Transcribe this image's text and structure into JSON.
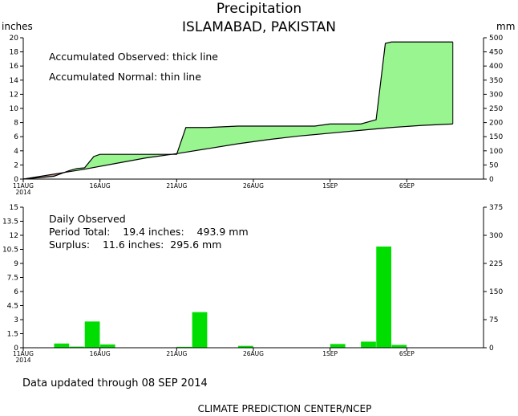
{
  "title": "Precipitation",
  "location": "ISLAMABAD, PAKISTAN",
  "chart_data": [
    {
      "type": "area",
      "name": "accumulated",
      "unit_left": "inches",
      "unit_right": "mm",
      "note_observed": "Accumulated Observed: thick line",
      "note_normal": "Accumulated Normal: thin line",
      "ylim": [
        0,
        20
      ],
      "ylim_right": [
        0,
        500
      ],
      "yticks": [
        "0",
        "2",
        "4",
        "6",
        "8",
        "10",
        "12",
        "14",
        "16",
        "18",
        "20"
      ],
      "yticks_right": [
        "0",
        "50",
        "100",
        "150",
        "200",
        "250",
        "300",
        "350",
        "400",
        "450",
        "500"
      ],
      "xlim": [
        0,
        30
      ],
      "xticks": [
        {
          "x": 0,
          "label": "11AUG",
          "sub": "2014"
        },
        {
          "x": 5,
          "label": "16AUG",
          "sub": ""
        },
        {
          "x": 10,
          "label": "21AUG",
          "sub": ""
        },
        {
          "x": 15,
          "label": "26AUG",
          "sub": ""
        },
        {
          "x": 20,
          "label": "1SEP",
          "sub": ""
        },
        {
          "x": 25,
          "label": "6SEP",
          "sub": ""
        }
      ],
      "observed": {
        "x": [
          0,
          1,
          2,
          3,
          3.5,
          4,
          4.6,
          5,
          6,
          7,
          8,
          9,
          10,
          10.6,
          12,
          14,
          16,
          18,
          19,
          20,
          21,
          22,
          23,
          23.6,
          24,
          25,
          26,
          27,
          28
        ],
        "y": [
          0,
          0.2,
          0.4,
          1.2,
          1.5,
          1.6,
          3.2,
          3.5,
          3.5,
          3.5,
          3.5,
          3.5,
          3.5,
          7.3,
          7.3,
          7.5,
          7.5,
          7.5,
          7.5,
          7.8,
          7.8,
          7.8,
          8.4,
          19.2,
          19.4,
          19.4,
          19.4,
          19.4,
          19.4
        ]
      },
      "normal": {
        "x": [
          0,
          2,
          4,
          6,
          8,
          10,
          12,
          14,
          16,
          18,
          20,
          22,
          24,
          26,
          28
        ],
        "y": [
          0,
          0.7,
          1.4,
          2.2,
          3.0,
          3.6,
          4.3,
          5.0,
          5.6,
          6.1,
          6.5,
          6.9,
          7.3,
          7.6,
          7.8
        ]
      },
      "colors": {
        "surplus": "#98f590",
        "deficit": "#b58a80",
        "line": "#000000"
      }
    },
    {
      "type": "bar",
      "name": "daily",
      "note_title": "Daily Observed",
      "note_total": "Period Total:    19.4 inches:    493.9 mm",
      "note_surplus": "Surplus:    11.6 inches:  295.6 mm",
      "ylim": [
        0,
        15
      ],
      "ylim_right": [
        0,
        375
      ],
      "yticks": [
        "0",
        "1.5",
        "3",
        "4.5",
        "6",
        "7.5",
        "9",
        "10.5",
        "12",
        "13.5",
        "15"
      ],
      "yticks_right": [
        "0",
        "75",
        "150",
        "225",
        "300",
        "375"
      ],
      "xticks": [
        {
          "x": 0,
          "label": "11AUG",
          "sub": "2014"
        },
        {
          "x": 5,
          "label": "16AUG",
          "sub": ""
        },
        {
          "x": 10,
          "label": "21AUG",
          "sub": ""
        },
        {
          "x": 15,
          "label": "26AUG",
          "sub": ""
        },
        {
          "x": 20,
          "label": "1SEP",
          "sub": ""
        },
        {
          "x": 25,
          "label": "6SEP",
          "sub": ""
        }
      ],
      "days": [
        0,
        1,
        2,
        3,
        4,
        5,
        6,
        7,
        8,
        9,
        10,
        11,
        12,
        13,
        14,
        15,
        16,
        17,
        18,
        19,
        20,
        21,
        22,
        23,
        24,
        25,
        26,
        27,
        28
      ],
      "values": [
        0,
        0,
        0.45,
        0.12,
        2.8,
        0.35,
        0,
        0,
        0,
        0,
        0.1,
        3.8,
        0,
        0,
        0.2,
        0,
        0,
        0,
        0,
        0,
        0.4,
        0,
        0.65,
        10.8,
        0.3,
        0,
        0,
        0,
        0
      ],
      "color": "#00dd00"
    }
  ],
  "footer": "Data updated through 08 SEP 2014",
  "credit": "CLIMATE PREDICTION CENTER/NCEP"
}
